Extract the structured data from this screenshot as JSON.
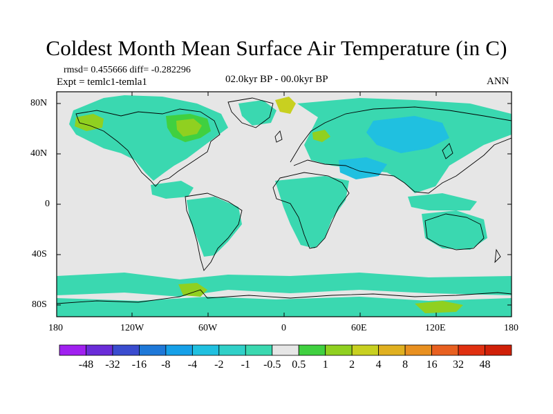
{
  "title": "Coldest Month Mean Surface Air Temperature (in C)",
  "stats": "rmsd= 0.455666 diff= -0.282296",
  "experiment": "Expt = temlc1-temla1",
  "period": "02.0kyr BP - 00.0kyr BP",
  "season": "ANN",
  "lat_labels": [
    "80N",
    "40N",
    "0",
    "40S",
    "80S"
  ],
  "lon_labels": [
    "180",
    "120W",
    "60W",
    "0",
    "60E",
    "120E",
    "180"
  ],
  "colorbar": {
    "labels": [
      "-48",
      "-32",
      "-16",
      "-8",
      "-4",
      "-2",
      "-1",
      "-0.5",
      "0.5",
      "1",
      "2",
      "4",
      "8",
      "16",
      "32",
      "48"
    ],
    "colors": [
      "#a020f0",
      "#6a2cd8",
      "#3a4ccf",
      "#1e78d8",
      "#16a0e8",
      "#20c0e0",
      "#30d0c8",
      "#3ad8b0",
      "#e6e6e6",
      "#40d040",
      "#90d020",
      "#c8d020",
      "#e0b020",
      "#e89020",
      "#e86020",
      "#e03010",
      "#d02008"
    ]
  },
  "colors": {
    "ocean_neutral": "#e6e6e6",
    "cool_small": "#3ad8b0",
    "cool_mid": "#30d0c8",
    "cool_more": "#20c0e0",
    "warm_small": "#40d040",
    "warm_mid": "#90d020",
    "warm_more": "#c8d020",
    "coast": "#000000"
  }
}
